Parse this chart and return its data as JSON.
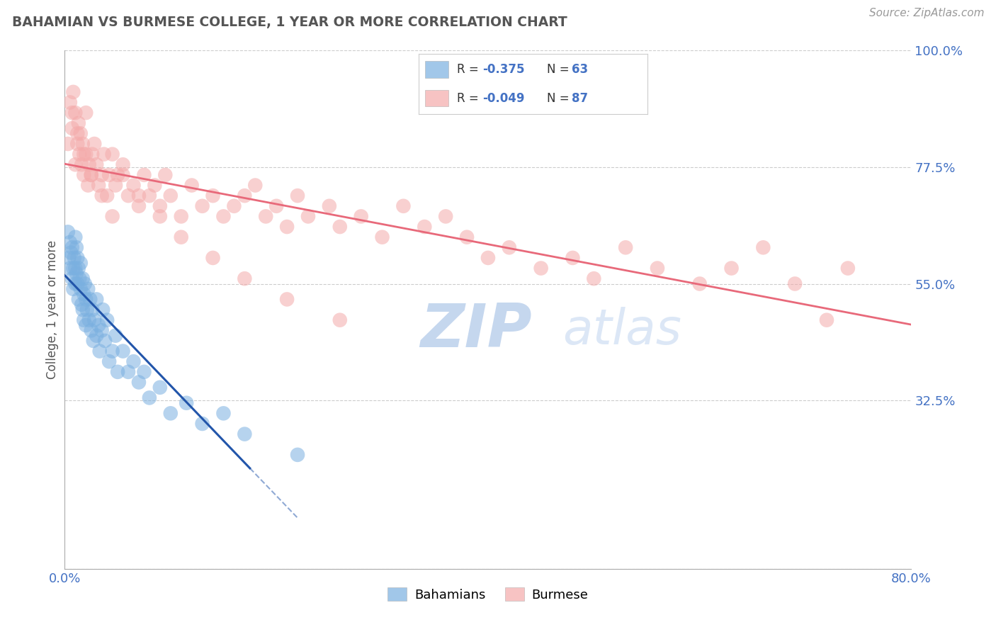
{
  "title": "BAHAMIAN VS BURMESE COLLEGE, 1 YEAR OR MORE CORRELATION CHART",
  "source_text": "Source: ZipAtlas.com",
  "ylabel": "College, 1 year or more",
  "xlim": [
    0.0,
    0.8
  ],
  "ylim": [
    0.0,
    1.0
  ],
  "xticks": [
    0.0,
    0.8
  ],
  "xticklabels": [
    "0.0%",
    "80.0%"
  ],
  "yticks": [
    0.325,
    0.55,
    0.775,
    1.0
  ],
  "yticklabels": [
    "32.5%",
    "55.0%",
    "77.5%",
    "100.0%"
  ],
  "legend_labels": [
    "Bahamians",
    "Burmese"
  ],
  "R_bahamian": -0.375,
  "N_bahamian": 63,
  "R_burmese": -0.049,
  "N_burmese": 87,
  "color_bahamian": "#7ab0e0",
  "color_burmese": "#f4aaaa",
  "line_color_bahamian": "#2255aa",
  "line_color_burmese": "#e8697a",
  "watermark_zip": "ZIP",
  "watermark_atlas": "atlas",
  "title_color": "#555555",
  "axis_label_color": "#555555",
  "tick_color": "#4472c4",
  "grid_color": "#cccccc",
  "bahamian_x": [
    0.003,
    0.004,
    0.005,
    0.005,
    0.006,
    0.007,
    0.007,
    0.008,
    0.008,
    0.009,
    0.01,
    0.01,
    0.01,
    0.011,
    0.011,
    0.012,
    0.012,
    0.013,
    0.013,
    0.014,
    0.015,
    0.015,
    0.016,
    0.017,
    0.017,
    0.018,
    0.018,
    0.019,
    0.02,
    0.02,
    0.021,
    0.022,
    0.023,
    0.024,
    0.025,
    0.026,
    0.027,
    0.028,
    0.03,
    0.03,
    0.032,
    0.033,
    0.035,
    0.036,
    0.038,
    0.04,
    0.042,
    0.045,
    0.048,
    0.05,
    0.055,
    0.06,
    0.065,
    0.07,
    0.075,
    0.08,
    0.09,
    0.1,
    0.115,
    0.13,
    0.15,
    0.17,
    0.22
  ],
  "bahamian_y": [
    0.65,
    0.6,
    0.63,
    0.58,
    0.61,
    0.56,
    0.62,
    0.54,
    0.58,
    0.6,
    0.64,
    0.58,
    0.55,
    0.62,
    0.57,
    0.6,
    0.55,
    0.58,
    0.52,
    0.56,
    0.54,
    0.59,
    0.51,
    0.56,
    0.5,
    0.53,
    0.48,
    0.55,
    0.52,
    0.47,
    0.5,
    0.54,
    0.48,
    0.52,
    0.46,
    0.5,
    0.44,
    0.48,
    0.52,
    0.45,
    0.47,
    0.42,
    0.46,
    0.5,
    0.44,
    0.48,
    0.4,
    0.42,
    0.45,
    0.38,
    0.42,
    0.38,
    0.4,
    0.36,
    0.38,
    0.33,
    0.35,
    0.3,
    0.32,
    0.28,
    0.3,
    0.26,
    0.22
  ],
  "burmese_x": [
    0.003,
    0.005,
    0.007,
    0.008,
    0.01,
    0.01,
    0.012,
    0.013,
    0.014,
    0.015,
    0.016,
    0.017,
    0.018,
    0.02,
    0.02,
    0.022,
    0.023,
    0.025,
    0.026,
    0.028,
    0.03,
    0.032,
    0.035,
    0.037,
    0.04,
    0.042,
    0.045,
    0.048,
    0.05,
    0.055,
    0.06,
    0.065,
    0.07,
    0.075,
    0.08,
    0.085,
    0.09,
    0.095,
    0.1,
    0.11,
    0.12,
    0.13,
    0.14,
    0.15,
    0.16,
    0.17,
    0.18,
    0.19,
    0.2,
    0.21,
    0.22,
    0.23,
    0.25,
    0.26,
    0.28,
    0.3,
    0.32,
    0.34,
    0.36,
    0.38,
    0.4,
    0.42,
    0.45,
    0.48,
    0.5,
    0.53,
    0.56,
    0.6,
    0.63,
    0.66,
    0.69,
    0.72,
    0.74,
    0.007,
    0.012,
    0.018,
    0.025,
    0.035,
    0.045,
    0.055,
    0.07,
    0.09,
    0.11,
    0.14,
    0.17,
    0.21,
    0.26
  ],
  "burmese_y": [
    0.82,
    0.9,
    0.85,
    0.92,
    0.88,
    0.78,
    0.82,
    0.86,
    0.8,
    0.84,
    0.78,
    0.82,
    0.76,
    0.8,
    0.88,
    0.74,
    0.78,
    0.76,
    0.8,
    0.82,
    0.78,
    0.74,
    0.76,
    0.8,
    0.72,
    0.76,
    0.8,
    0.74,
    0.76,
    0.78,
    0.72,
    0.74,
    0.7,
    0.76,
    0.72,
    0.74,
    0.7,
    0.76,
    0.72,
    0.68,
    0.74,
    0.7,
    0.72,
    0.68,
    0.7,
    0.72,
    0.74,
    0.68,
    0.7,
    0.66,
    0.72,
    0.68,
    0.7,
    0.66,
    0.68,
    0.64,
    0.7,
    0.66,
    0.68,
    0.64,
    0.6,
    0.62,
    0.58,
    0.6,
    0.56,
    0.62,
    0.58,
    0.55,
    0.58,
    0.62,
    0.55,
    0.48,
    0.58,
    0.88,
    0.84,
    0.8,
    0.76,
    0.72,
    0.68,
    0.76,
    0.72,
    0.68,
    0.64,
    0.6,
    0.56,
    0.52,
    0.48
  ]
}
